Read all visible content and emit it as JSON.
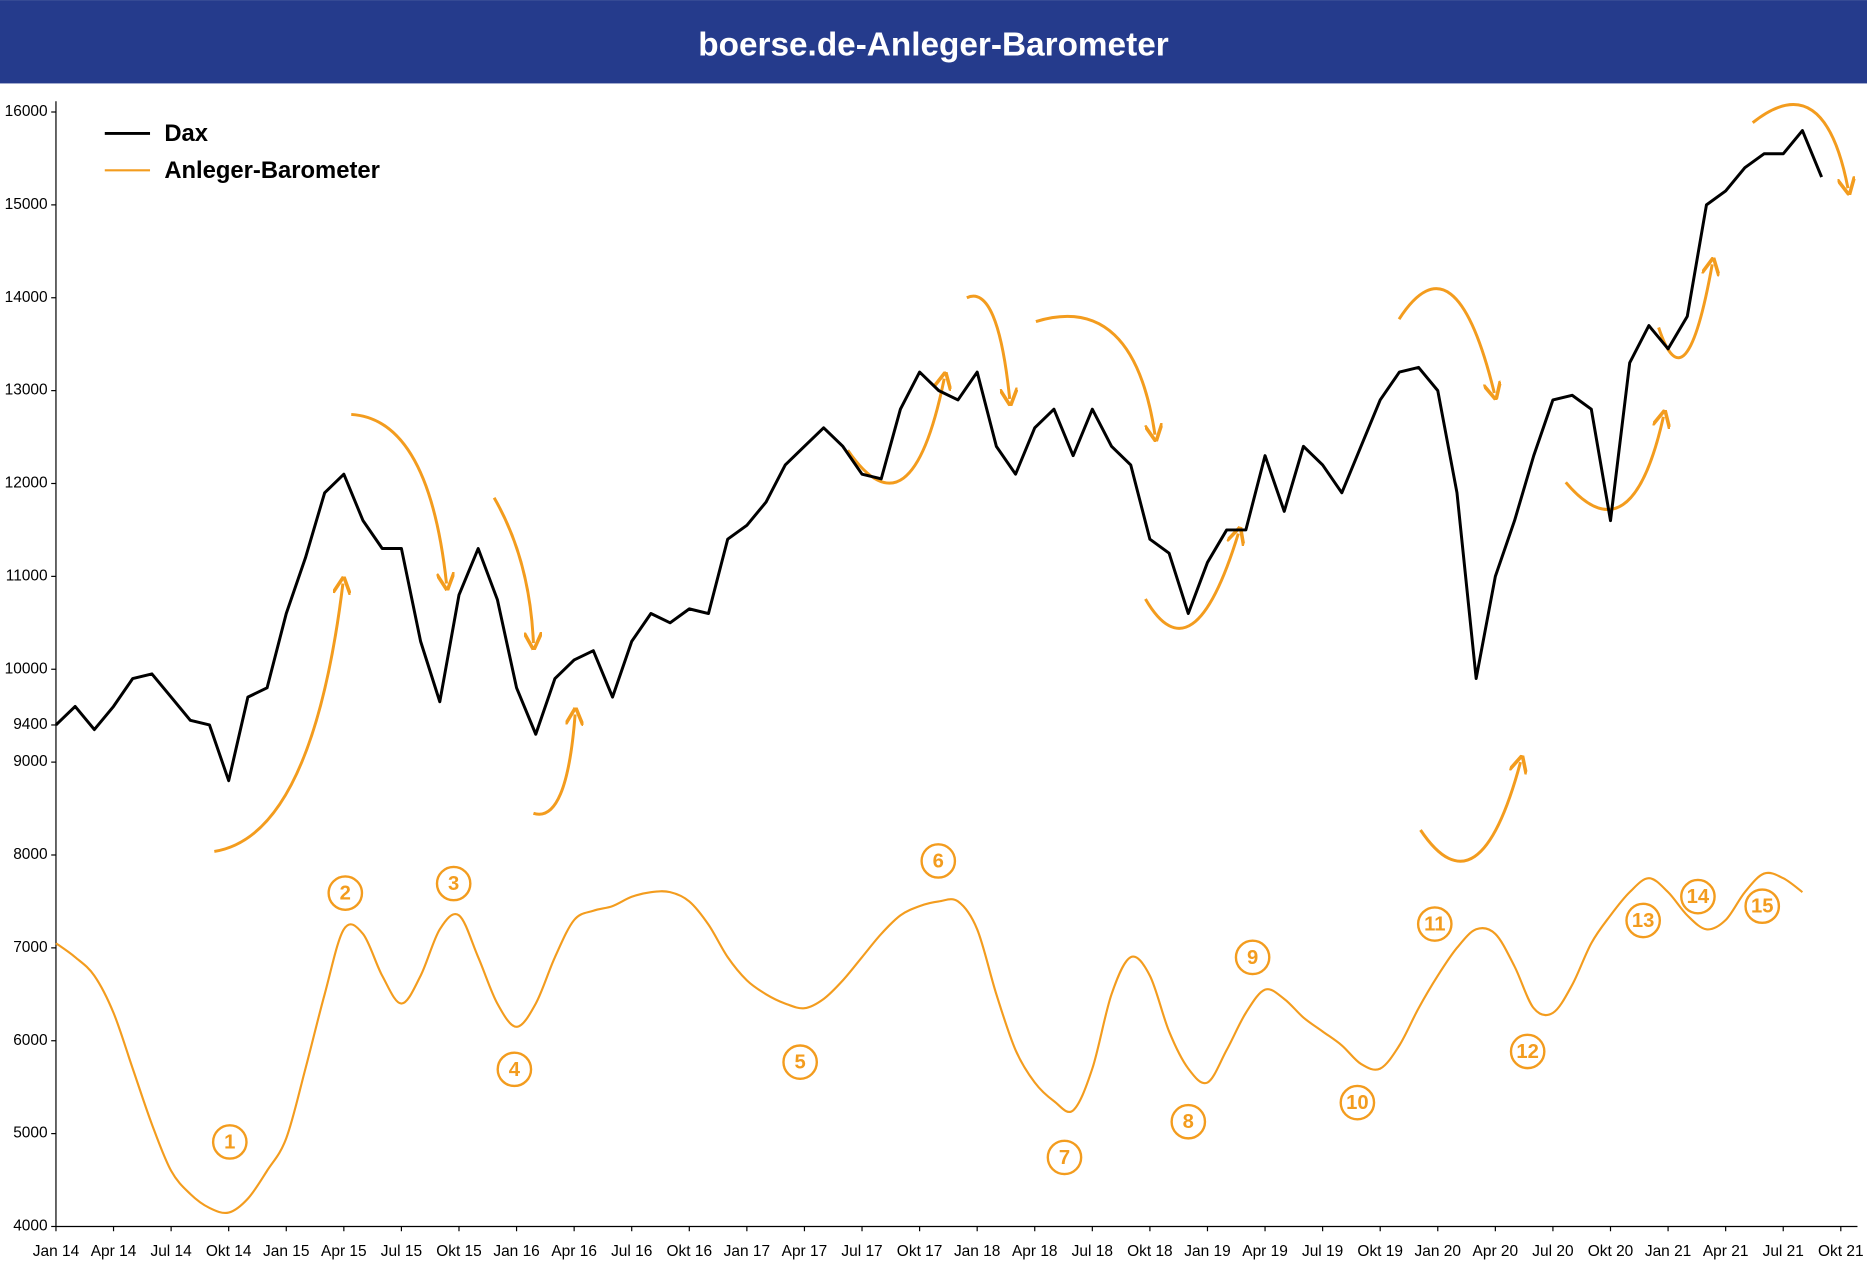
{
  "chart_data": {
    "type": "line",
    "title": "boerse.de-Anleger-Barometer",
    "categories": [
      "Jan 14",
      null,
      null,
      "Apr 14",
      null,
      null,
      "Jul 14",
      null,
      null,
      "Okt 14",
      null,
      null,
      "Jan 15",
      null,
      null,
      "Apr 15",
      null,
      null,
      "Jul 15",
      null,
      null,
      "Okt 15",
      null,
      null,
      "Jan 16",
      null,
      null,
      "Apr 16",
      null,
      null,
      "Jul 16",
      null,
      null,
      "Okt 16",
      null,
      null,
      "Jan 17",
      null,
      null,
      "Apr 17",
      null,
      null,
      "Jul 17",
      null,
      null,
      "Okt 17",
      null,
      null,
      "Jan 18",
      null,
      null,
      "Apr 18",
      null,
      null,
      "Jul 18",
      null,
      null,
      "Okt 18",
      null,
      null,
      "Jan 19",
      null,
      null,
      "Apr 19",
      null,
      null,
      "Jul 19",
      null,
      null,
      "Okt 19",
      null,
      null,
      "Jan 20",
      null,
      null,
      "Apr 20",
      null,
      null,
      "Jul 20",
      null,
      null,
      "Okt 20",
      null,
      null,
      "Jan 21",
      null,
      null,
      "Apr 21",
      null,
      null,
      "Jul 21",
      null,
      null,
      "Okt 21"
    ],
    "series": [
      {
        "name": "Dax",
        "color": "#000000",
        "values": [
          9400,
          9600,
          9350,
          9600,
          9900,
          9950,
          9700,
          9450,
          9400,
          8800,
          9700,
          9800,
          10600,
          11200,
          11900,
          12100,
          11600,
          11300,
          11300,
          10300,
          9650,
          10800,
          11300,
          10750,
          9800,
          9300,
          9900,
          10100,
          10200,
          9700,
          10300,
          10600,
          10500,
          10650,
          10600,
          11400,
          11550,
          11800,
          12200,
          12400,
          12600,
          12400,
          12100,
          12050,
          12800,
          13200,
          13000,
          12900,
          13200,
          12400,
          12100,
          12600,
          12800,
          12300,
          12800,
          12400,
          12200,
          11400,
          11250,
          10600,
          11150,
          11500,
          11500,
          12300,
          11700,
          12400,
          12200,
          11900,
          12400,
          12900,
          13200,
          13250,
          13000,
          11900,
          9900,
          11000,
          11600,
          12300,
          12900,
          12950,
          12800,
          11600,
          13300,
          13700,
          13450,
          13800,
          15000,
          15150,
          15400,
          15550,
          15550,
          15800,
          15300,
          null
        ]
      },
      {
        "name": "Anleger-Barometer",
        "color": "#f39c1e",
        "values": [
          7050,
          6900,
          6700,
          6300,
          5700,
          5100,
          4600,
          4350,
          4200,
          4150,
          4300,
          4600,
          4950,
          5700,
          6500,
          7200,
          7150,
          6700,
          6400,
          6700,
          7200,
          7350,
          6900,
          6400,
          6150,
          6400,
          6900,
          7300,
          7400,
          7450,
          7550,
          7600,
          7600,
          7500,
          7250,
          6900,
          6650,
          6500,
          6400,
          6350,
          6450,
          6650,
          6900,
          7150,
          7350,
          7450,
          7500,
          7500,
          7200,
          6500,
          5900,
          5550,
          5350,
          5250,
          5700,
          6500,
          6900,
          6700,
          6100,
          5700,
          5550,
          5900,
          6300,
          6550,
          6450,
          6250,
          6100,
          5950,
          5750,
          5700,
          5950,
          6350,
          6700,
          7000,
          7200,
          7150,
          6800,
          6350,
          6300,
          6600,
          7050,
          7350,
          7600,
          7750,
          7600,
          7350,
          7200,
          7300,
          7600,
          7800,
          7750,
          7600,
          null,
          null
        ]
      }
    ],
    "annotations": [
      "1",
      "2",
      "3",
      "4",
      "5",
      "6",
      "7",
      "8",
      "9",
      "10",
      "11",
      "12",
      "13",
      "14",
      "15"
    ],
    "ylim": [
      4000,
      16000
    ],
    "yticks": [
      4000,
      5000,
      6000,
      7000,
      8000,
      9000,
      9400,
      10000,
      11000,
      12000,
      13000,
      14000,
      15000,
      16000
    ],
    "legend": "upper left",
    "grid": false
  }
}
